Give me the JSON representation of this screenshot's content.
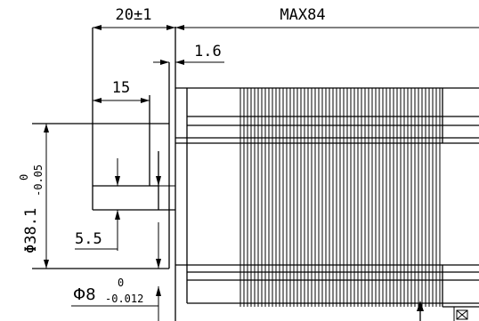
{
  "dimensions": {
    "shaft_length": "20±1",
    "body_length": "MAX84",
    "flange_thickness": "1.6",
    "flat_length": "15",
    "flat_depth": "5.5",
    "boss_diameter": {
      "symbol": "Φ38.1",
      "upper_tolerance": "0",
      "lower_tolerance": "-0.05"
    },
    "shaft_diameter": {
      "symbol": "Φ8",
      "upper_tolerance": "0",
      "lower_tolerance": "-0.012"
    }
  }
}
